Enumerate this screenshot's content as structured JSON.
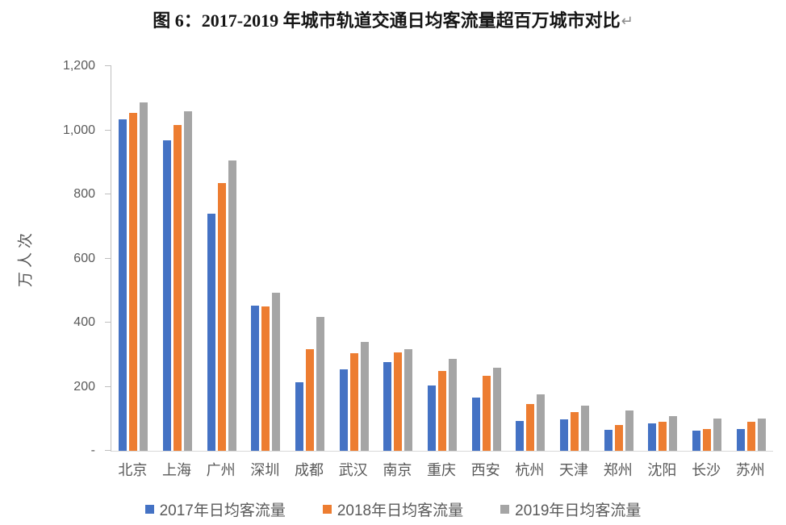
{
  "page": {
    "title_text": "图 6：2017-2019 年城市轨道交通日均客流量超百万城市对比",
    "paragraph_mark": "↵"
  },
  "chart_data": {
    "type": "bar",
    "title": "图 6：2017-2019 年城市轨道交通日均客流量超百万城市对比",
    "ylabel": "万人次",
    "xlabel": "",
    "ylim": [
      0,
      1200
    ],
    "ytick_interval": 200,
    "ytick_labels": [
      "-",
      "200",
      "400",
      "600",
      "800",
      "1,000",
      "1,200"
    ],
    "grid": false,
    "legend_position": "bottom",
    "categories": [
      "北京",
      "上海",
      "广州",
      "深圳",
      "成都",
      "武汉",
      "南京",
      "重庆",
      "西安",
      "杭州",
      "天津",
      "郑州",
      "沈阳",
      "长沙",
      "苏州"
    ],
    "series": [
      {
        "name": "2017年日均客流量",
        "color": "#4472C4",
        "values": [
          1035,
          968,
          740,
          453,
          213,
          254,
          277,
          203,
          165,
          92,
          97,
          66,
          86,
          62,
          67
        ]
      },
      {
        "name": "2018年日均客流量",
        "color": "#ED7D31",
        "values": [
          1053,
          1016,
          835,
          450,
          317,
          304,
          306,
          250,
          235,
          145,
          121,
          80,
          90,
          67,
          90
        ]
      },
      {
        "name": "2019年日均客流量",
        "color": "#A5A5A5",
        "values": [
          1087,
          1060,
          905,
          492,
          418,
          340,
          317,
          286,
          259,
          177,
          142,
          127,
          109,
          100,
          100
        ]
      }
    ],
    "axis_color": "#BFBFBF",
    "tick_label_color": "#595959",
    "category_label_color": "#595959",
    "legend_text_color": "#595959"
  }
}
